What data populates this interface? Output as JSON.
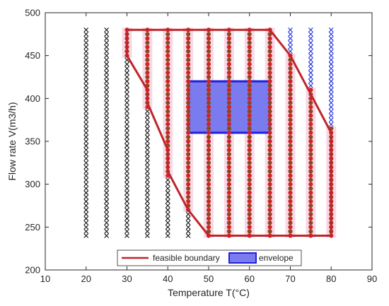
{
  "chart_data": {
    "type": "scatter",
    "title": "",
    "xlabel": "Temperature T(°C)",
    "ylabel": "Flow rate V(m3/h)",
    "xlim": [
      10,
      90
    ],
    "ylim": [
      200,
      500
    ],
    "xticks": [
      10,
      20,
      30,
      40,
      50,
      60,
      70,
      80,
      90
    ],
    "yticks": [
      200,
      250,
      300,
      350,
      400,
      450,
      500
    ],
    "grid": false,
    "legend_position": "bottom-center",
    "grid_points": {
      "temperatures": [
        20,
        25,
        30,
        35,
        40,
        45,
        50,
        55,
        60,
        65,
        70,
        75,
        80
      ],
      "flow_rates": [
        240,
        245,
        250,
        255,
        260,
        265,
        270,
        275,
        280,
        285,
        290,
        295,
        300,
        305,
        310,
        315,
        320,
        325,
        330,
        335,
        340,
        345,
        350,
        355,
        360,
        365,
        370,
        375,
        380,
        385,
        390,
        395,
        400,
        405,
        410,
        415,
        420,
        425,
        430,
        435,
        440,
        445,
        450,
        455,
        460,
        465,
        470,
        475,
        480
      ],
      "feasible_marker": "dot",
      "infeasible_marker": "x"
    },
    "series": [
      {
        "name": "feasible boundary",
        "kind": "polygon-outline",
        "color": "#c0252b",
        "points": [
          [
            30,
            480
          ],
          [
            65,
            480
          ],
          [
            70,
            450
          ],
          [
            80,
            360
          ],
          [
            80,
            240
          ],
          [
            50,
            240
          ],
          [
            45,
            270
          ],
          [
            40,
            315
          ],
          [
            40,
            340
          ],
          [
            35,
            395
          ],
          [
            35,
            410
          ],
          [
            30,
            450
          ],
          [
            30,
            480
          ]
        ]
      },
      {
        "name": "envelope",
        "kind": "filled-rectangle",
        "color": "#1f1fdc",
        "fill": "#7b7bf0",
        "points": [
          [
            45,
            360
          ],
          [
            65,
            360
          ],
          [
            65,
            420
          ],
          [
            45,
            420
          ],
          [
            45,
            360
          ]
        ]
      }
    ],
    "colors": {
      "feasible_dot_a": "#d1232b",
      "feasible_dot_b": "#8b4a1d",
      "infeasible_cross_left": "#111111",
      "infeasible_cross_right": "#1f2fd8",
      "halo": "#f6c7dc"
    }
  }
}
